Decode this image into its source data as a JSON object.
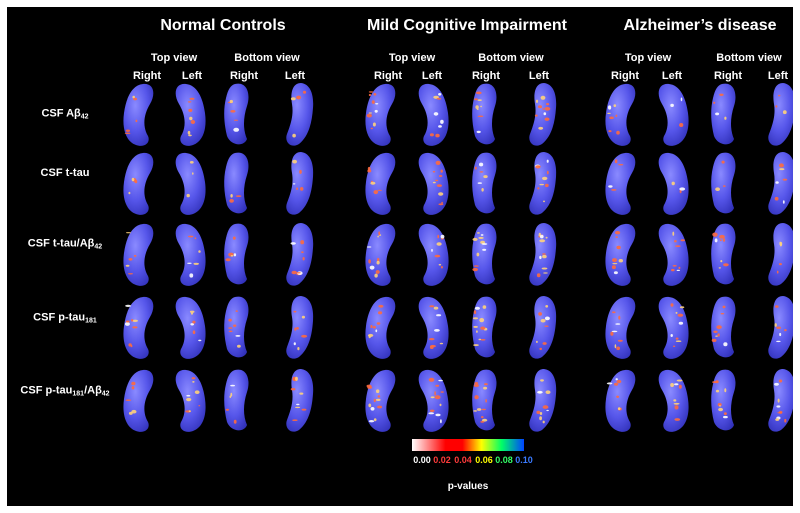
{
  "groups": [
    {
      "title": "Normal Controls"
    },
    {
      "title": "Mild Cognitive Impairment"
    },
    {
      "title": "Alzheimer’s disease"
    }
  ],
  "view_labels": {
    "top": "Top view",
    "bottom": "Bottom view"
  },
  "side_labels": {
    "right": "Right",
    "left": "Left"
  },
  "rows": [
    {
      "label_main": "CSF Aβ",
      "label_sub": "42",
      "label_tail": "",
      "label_sub2": ""
    },
    {
      "label_main": "CSF t-tau",
      "label_sub": "",
      "label_tail": "",
      "label_sub2": ""
    },
    {
      "label_main": "CSF t-tau/Aβ",
      "label_sub": "42",
      "label_tail": "",
      "label_sub2": ""
    },
    {
      "label_main": "CSF p-tau",
      "label_sub": "181",
      "label_tail": "",
      "label_sub2": ""
    },
    {
      "label_main": "CSF p-tau",
      "label_sub": "181",
      "label_tail": "/Aβ",
      "label_sub2": "42"
    }
  ],
  "colorbar": {
    "ticks": [
      "0.00",
      "0.02",
      "0.04",
      "0.06",
      "0.08",
      "0.10"
    ],
    "tick_colors": [
      "#ffffff",
      "#ff3b3b",
      "#ff3b3b",
      "#ffff00",
      "#33ff66",
      "#3b7bff"
    ],
    "label": "p-values",
    "colors": [
      "#ffffff",
      "#ff0000",
      "#ff0000",
      "#ffff00",
      "#00ff66",
      "#0044ff"
    ]
  },
  "colors": {
    "background": "#000000",
    "surface": "#5555e6",
    "highlight_hot": "#ff6a3d",
    "highlight_warm": "#ffd27a"
  }
}
